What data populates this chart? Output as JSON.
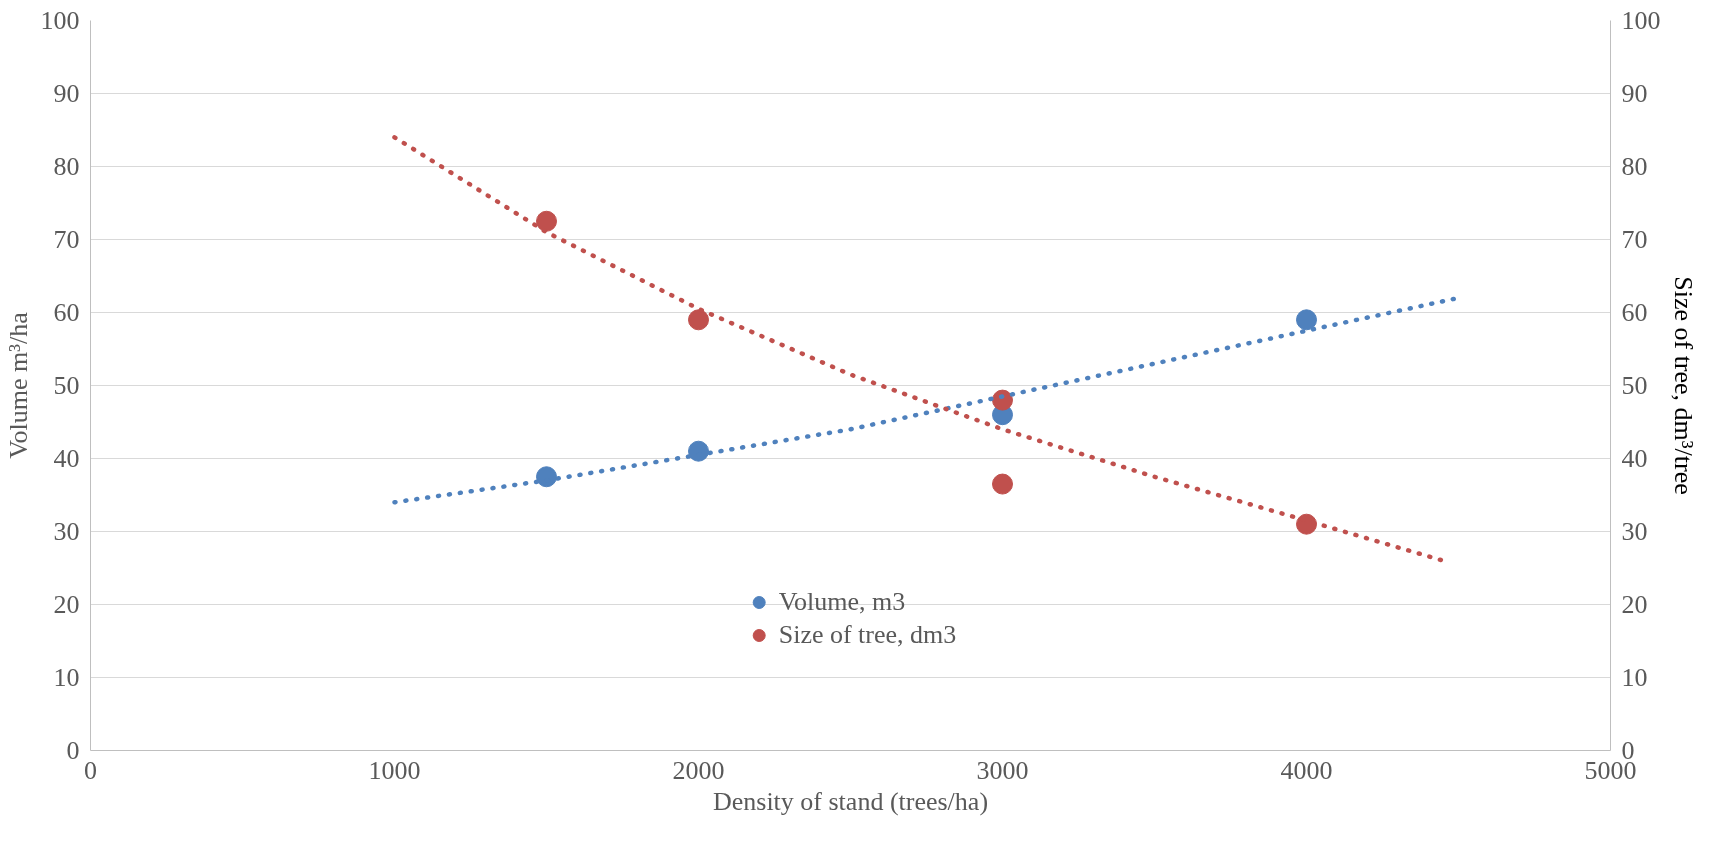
{
  "chart_data": {
    "type": "scatter",
    "xlabel": "Density of stand (trees/ha)",
    "ylabel": "Volume m³/ha",
    "y2label": "Size of tree, dm³/tree",
    "xlim": [
      0,
      5000
    ],
    "xticks": [
      0,
      1000,
      2000,
      3000,
      4000,
      5000
    ],
    "ylim": [
      0,
      100
    ],
    "yticks": [
      0,
      10,
      20,
      30,
      40,
      50,
      60,
      70,
      80,
      90,
      100
    ],
    "y2lim": [
      0,
      100
    ],
    "y2ticks": [
      0,
      10,
      20,
      30,
      40,
      50,
      60,
      70,
      80,
      90,
      100
    ],
    "grid": "y",
    "legend": "bottom",
    "series": [
      {
        "name": "Volume, m3",
        "marker": "circle",
        "color": "#4f81bd",
        "x": [
          1500,
          2000,
          3000,
          4000
        ],
        "values": [
          37.5,
          41,
          46,
          59
        ]
      },
      {
        "name": "Size of tree, dm3",
        "marker": "circle",
        "color": "#c0504d",
        "x": [
          1500,
          2000,
          3000,
          3000,
          4000
        ],
        "values": [
          72.5,
          59,
          48,
          36.5,
          31
        ]
      },
      {
        "type": "line",
        "line_style": "dotted",
        "color": "#4f81bd",
        "x": [
          1000,
          1500,
          2000,
          2500,
          3000,
          3500,
          4000,
          4500
        ],
        "values": [
          34,
          37,
          40.5,
          44,
          48.5,
          53,
          57.5,
          62
        ]
      },
      {
        "type": "line",
        "line_style": "dotted",
        "color": "#c0504d",
        "x": [
          1000,
          1500,
          2000,
          2500,
          3000,
          3500,
          4000,
          4450
        ],
        "values": [
          84,
          71,
          60.5,
          51.5,
          44,
          37.5,
          31.5,
          26
        ]
      }
    ]
  }
}
